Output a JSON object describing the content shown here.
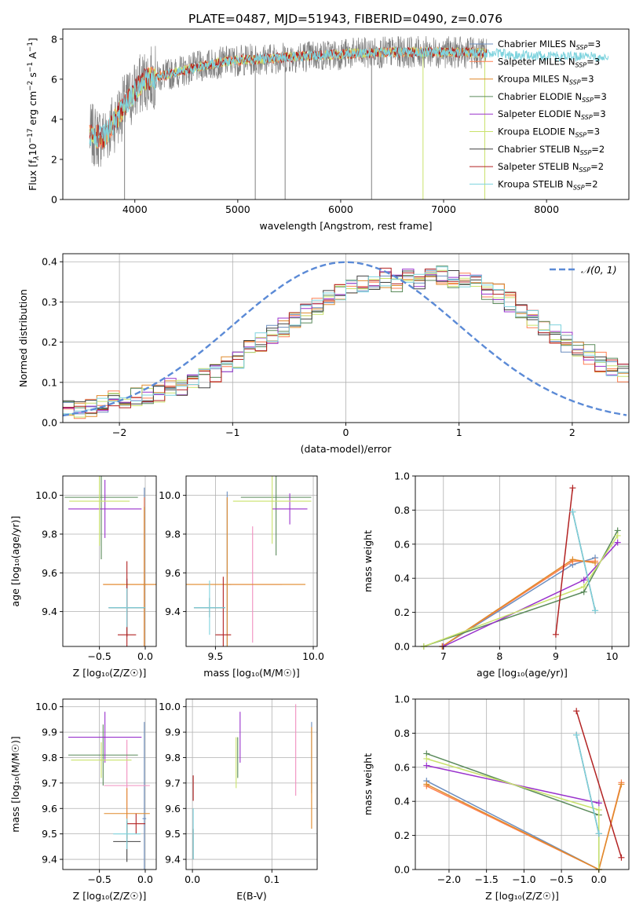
{
  "figure": {
    "title": "PLATE=0487, MJD=51943, FIBERID=0490, z=0.076"
  },
  "colors": {
    "Chabrier MILES": "#6c8ebf",
    "Salpeter MILES": "#ff7f50",
    "Kroupa MILES": "#e08a2b",
    "Chabrier ELODIE": "#5a8a5a",
    "Salpeter ELODIE": "#9932cc",
    "Kroupa ELODIE": "#c9e26b",
    "Chabrier STELIB": "#404040",
    "Salpeter STELIB": "#b22222",
    "Kroupa STELIB": "#7ed3de",
    "Salpeter MILES pink": "#f08fbf",
    "grey": "#808080",
    "gauss": "#5b8ad6"
  },
  "chart_data": [
    {
      "id": "spectrum",
      "type": "line",
      "xlabel": "wavelength [Angstrom, rest frame]",
      "ylabel": "Flux [f",
      "ylabel_parts": [
        "Flux [f",
        "λ",
        "10",
        "−17",
        " erg cm",
        "−2",
        " s",
        "−1",
        " A",
        "−1",
        "]"
      ],
      "xlim": [
        3300,
        8800
      ],
      "ylim": [
        0,
        8.5
      ],
      "xticks": [
        4000,
        5000,
        6000,
        7000,
        8000
      ],
      "yticks": [
        0,
        2,
        4,
        6,
        8
      ],
      "legend_position": "right",
      "legend": [
        {
          "name": "Chabrier MILES",
          "sub": "SSP",
          "n": "=3"
        },
        {
          "name": "Salpeter MILES",
          "sub": "SSP",
          "n": "=3"
        },
        {
          "name": "Kroupa MILES",
          "sub": "SSP",
          "n": "=3"
        },
        {
          "name": "Chabrier ELODIE",
          "sub": "SSP",
          "n": "=3"
        },
        {
          "name": "Salpeter ELODIE",
          "sub": "SSP",
          "n": "=3"
        },
        {
          "name": "Kroupa ELODIE",
          "sub": "SSP",
          "n": "=3"
        },
        {
          "name": "Chabrier STELIB",
          "sub": "SSP",
          "n": "=2"
        },
        {
          "name": "Salpeter STELIB",
          "sub": "SSP",
          "n": "=2"
        },
        {
          "name": "Kroupa STELIB",
          "sub": "SSP",
          "n": "=2"
        }
      ],
      "continuum": [
        [
          3560,
          3.2
        ],
        [
          3700,
          3.1
        ],
        [
          3900,
          4.7
        ],
        [
          4000,
          5.4
        ],
        [
          4100,
          6.0
        ],
        [
          4300,
          6.2
        ],
        [
          4600,
          6.6
        ],
        [
          4900,
          6.9
        ],
        [
          5200,
          7.0
        ],
        [
          5500,
          7.1
        ],
        [
          6000,
          7.25
        ],
        [
          6500,
          7.35
        ],
        [
          7000,
          7.35
        ],
        [
          7400,
          7.3
        ],
        [
          8000,
          7.15
        ],
        [
          8600,
          7.1
        ]
      ],
      "observed_range": [
        3560,
        7420
      ],
      "dips": [
        [
          3900,
          0
        ],
        [
          5170,
          0
        ],
        [
          5460,
          0
        ],
        [
          6300,
          0
        ],
        [
          6800,
          0
        ],
        [
          7400,
          0
        ]
      ]
    },
    {
      "id": "residuals",
      "type": "line",
      "xlabel": "(data-model)/error",
      "ylabel": "Normed distribution",
      "xlim": [
        -2.5,
        2.5
      ],
      "ylim": [
        0,
        0.42
      ],
      "xticks": [
        -2,
        -1,
        0,
        1,
        2
      ],
      "yticks": [
        0.0,
        0.1,
        0.2,
        0.3,
        0.4
      ],
      "legend_position": "top-right",
      "legend": [
        {
          "name": "𝒩(0, 1)"
        }
      ],
      "bin_edges_start": -2.5,
      "bin_width": 0.1,
      "base_hist": [
        0.03,
        0.035,
        0.04,
        0.05,
        0.055,
        0.06,
        0.065,
        0.07,
        0.075,
        0.085,
        0.09,
        0.1,
        0.11,
        0.125,
        0.14,
        0.16,
        0.18,
        0.2,
        0.22,
        0.235,
        0.25,
        0.27,
        0.29,
        0.31,
        0.33,
        0.34,
        0.35,
        0.35,
        0.36,
        0.35,
        0.36,
        0.355,
        0.36,
        0.365,
        0.36,
        0.35,
        0.345,
        0.33,
        0.32,
        0.3,
        0.285,
        0.26,
        0.24,
        0.22,
        0.2,
        0.185,
        0.17,
        0.15,
        0.135,
        0.125,
        0.11,
        0.1,
        0.09,
        0.08,
        0.075,
        0.07,
        0.06,
        0.055,
        0.05,
        0.045
      ]
    },
    {
      "id": "z-age",
      "type": "scatter",
      "xlabel": "Z [log₁₀(Z/Z☉)]",
      "ylabel": "age  [log₁₀(age/yr)]",
      "xlim": [
        -0.9,
        0.12
      ],
      "ylim": [
        9.22,
        10.1
      ],
      "xticks": [
        -0.5,
        0.0
      ],
      "yticks": [
        9.4,
        9.6,
        9.8,
        10.0
      ],
      "points": [
        {
          "model": "Chabrier MILES",
          "x": -0.01,
          "y": 9.54,
          "xerr": 0.02,
          "yerr": 0.5
        },
        {
          "model": "Salpeter MILES",
          "x": -0.01,
          "y": 9.54,
          "xerr": 0.45,
          "yerr": 0.45
        },
        {
          "model": "Kroupa MILES",
          "x": -0.01,
          "y": 9.54,
          "xerr": 0.45,
          "yerr": 0.4
        },
        {
          "model": "Chabrier ELODIE",
          "x": -0.48,
          "y": 9.99,
          "xerr": 0.4,
          "yerr": 0.32
        },
        {
          "model": "Salpeter ELODIE",
          "x": -0.44,
          "y": 9.93,
          "xerr": 0.4,
          "yerr": 0.15
        },
        {
          "model": "Kroupa ELODIE",
          "x": -0.5,
          "y": 9.97,
          "xerr": 0.33,
          "yerr": 0.23
        },
        {
          "model": "Chabrier STELIB",
          "x": -0.2,
          "y": 9.42,
          "xerr": 0.2,
          "yerr": 0.15
        },
        {
          "model": "Salpeter STELIB",
          "x": -0.2,
          "y": 9.28,
          "xerr": 0.1,
          "yerr": 0.38
        },
        {
          "model": "Kroupa STELIB",
          "x": -0.2,
          "y": 9.42,
          "xerr": 0.2,
          "yerr": 0.1
        }
      ]
    },
    {
      "id": "mass-age",
      "type": "scatter",
      "xlabel": "mass [log₁₀(M/M☉)]",
      "ylabel": "",
      "xlim": [
        9.35,
        10.02
      ],
      "ylim": [
        9.22,
        10.1
      ],
      "xticks": [
        9.5,
        10.0
      ],
      "yticks": [
        9.4,
        9.6,
        9.8,
        10.0
      ],
      "points": [
        {
          "model": "Chabrier MILES",
          "x": 9.56,
          "y": 9.54,
          "xerr": 0.02,
          "yerr": 0.48
        },
        {
          "model": "Salpeter MILES",
          "x": 9.69,
          "y": 9.54,
          "xerr": 0.15,
          "yerr": 0.3
        },
        {
          "model": "Kroupa MILES",
          "x": 9.56,
          "y": 9.54,
          "xerr": 0.4,
          "yerr": 0.45
        },
        {
          "model": "Chabrier ELODIE",
          "x": 9.81,
          "y": 9.99,
          "xerr": 0.18,
          "yerr": 0.3
        },
        {
          "model": "Salpeter ELODIE",
          "x": 9.88,
          "y": 9.93,
          "xerr": 0.09,
          "yerr": 0.08
        },
        {
          "model": "Kroupa ELODIE",
          "x": 9.79,
          "y": 9.97,
          "xerr": 0.2,
          "yerr": 0.22
        },
        {
          "model": "Chabrier STELIB",
          "x": 9.47,
          "y": 9.42,
          "xerr": 0.08,
          "yerr": 0.05
        },
        {
          "model": "Salpeter STELIB",
          "x": 9.54,
          "y": 9.28,
          "xerr": 0.04,
          "yerr": 0.3
        },
        {
          "model": "Kroupa STELIB",
          "x": 9.47,
          "y": 9.42,
          "xerr": 0.08,
          "yerr": 0.14
        }
      ]
    },
    {
      "id": "age-weight",
      "type": "line",
      "xlabel": "age  [log₁₀(age/yr)]",
      "ylabel": "mass weight",
      "xlim": [
        6.5,
        10.3
      ],
      "ylim": [
        0,
        1.0
      ],
      "xticks": [
        7,
        8,
        9,
        10
      ],
      "yticks": [
        0.0,
        0.2,
        0.4,
        0.6,
        0.8,
        1.0
      ],
      "series": [
        {
          "model": "Chabrier MILES",
          "x": [
            6.98,
            9.3,
            9.7
          ],
          "y": [
            0.0,
            0.48,
            0.52
          ]
        },
        {
          "model": "Salpeter MILES",
          "x": [
            6.98,
            9.3,
            9.7
          ],
          "y": [
            0.0,
            0.5,
            0.5
          ]
        },
        {
          "model": "Kroupa MILES",
          "x": [
            6.98,
            9.3,
            9.7
          ],
          "y": [
            0.0,
            0.51,
            0.49
          ]
        },
        {
          "model": "Chabrier ELODIE",
          "x": [
            6.65,
            9.5,
            10.1
          ],
          "y": [
            0.0,
            0.32,
            0.68
          ]
        },
        {
          "model": "Salpeter ELODIE",
          "x": [
            7.0,
            9.5,
            10.1
          ],
          "y": [
            0.0,
            0.39,
            0.61
          ]
        },
        {
          "model": "Kroupa ELODIE",
          "x": [
            6.65,
            9.5,
            10.1
          ],
          "y": [
            0.0,
            0.35,
            0.65
          ]
        },
        {
          "model": "Chabrier STELIB",
          "x": [
            9.3,
            9.7
          ],
          "y": [
            0.79,
            0.21
          ]
        },
        {
          "model": "Salpeter STELIB",
          "x": [
            9.0,
            9.3
          ],
          "y": [
            0.07,
            0.93
          ]
        },
        {
          "model": "Kroupa STELIB",
          "x": [
            9.3,
            9.7
          ],
          "y": [
            0.79,
            0.21
          ]
        }
      ]
    },
    {
      "id": "z-mass",
      "type": "scatter",
      "xlabel": "Z [log₁₀(Z/Z☉)]",
      "ylabel": "mass [log₁₀(M/M☉)]",
      "xlim": [
        -0.9,
        0.12
      ],
      "ylim": [
        9.36,
        10.03
      ],
      "xticks": [
        -0.5,
        0.0
      ],
      "yticks": [
        9.4,
        9.5,
        9.6,
        9.7,
        9.8,
        9.9,
        10.0
      ],
      "points": [
        {
          "model": "Chabrier MILES",
          "x": -0.01,
          "y": 9.56,
          "xerr": 0.02,
          "yerr": 0.38
        },
        {
          "model": "Salpeter MILES",
          "x": -0.2,
          "y": 9.69,
          "xerr": 0.25,
          "yerr": 0.18
        },
        {
          "model": "Kroupa MILES",
          "x": -0.2,
          "y": 9.58,
          "xerr": 0.25,
          "yerr": 0.1
        },
        {
          "model": "Chabrier ELODIE",
          "x": -0.46,
          "y": 9.81,
          "xerr": 0.38,
          "yerr": 0.12
        },
        {
          "model": "Salpeter ELODIE",
          "x": -0.44,
          "y": 9.88,
          "xerr": 0.4,
          "yerr": 0.1
        },
        {
          "model": "Kroupa ELODIE",
          "x": -0.48,
          "y": 9.79,
          "xerr": 0.33,
          "yerr": 0.07
        },
        {
          "model": "Chabrier STELIB",
          "x": -0.2,
          "y": 9.47,
          "xerr": 0.15,
          "yerr": 0.08
        },
        {
          "model": "Salpeter STELIB",
          "x": -0.1,
          "y": 9.54,
          "xerr": 0.1,
          "yerr": 0.04
        },
        {
          "model": "Kroupa STELIB",
          "x": -0.2,
          "y": 9.5,
          "xerr": 0.15,
          "yerr": 0.06
        }
      ]
    },
    {
      "id": "ebv-mass",
      "type": "scatter",
      "xlabel": "E(B-V)",
      "ylabel": "",
      "xlim": [
        -0.008,
        0.157
      ],
      "ylim": [
        9.36,
        10.03
      ],
      "xticks": [
        0.0,
        0.1
      ],
      "yticks": [
        9.4,
        9.5,
        9.6,
        9.7,
        9.8,
        9.9,
        10.0
      ],
      "points": [
        {
          "model": "Chabrier MILES",
          "x": 0.15,
          "y": 9.8,
          "yerr": 0.14
        },
        {
          "model": "Salpeter MILES",
          "x": 0.13,
          "y": 9.83,
          "yerr": 0.18
        },
        {
          "model": "Kroupa MILES",
          "x": 0.15,
          "y": 9.72,
          "yerr": 0.2
        },
        {
          "model": "Chabrier ELODIE",
          "x": 0.057,
          "y": 9.8,
          "yerr": 0.08
        },
        {
          "model": "Salpeter ELODIE",
          "x": 0.06,
          "y": 9.88,
          "yerr": 0.1
        },
        {
          "model": "Kroupa ELODIE",
          "x": 0.055,
          "y": 9.78,
          "yerr": 0.1
        },
        {
          "model": "Chabrier STELIB",
          "x": 0.001,
          "y": 9.46,
          "yerr": 0.06
        },
        {
          "model": "Salpeter STELIB",
          "x": 0.001,
          "y": 9.68,
          "yerr": 0.05
        },
        {
          "model": "Kroupa STELIB",
          "x": 0.001,
          "y": 9.5,
          "yerr": 0.1
        }
      ]
    },
    {
      "id": "z-weight",
      "type": "line",
      "xlabel": "Z [log₁₀(Z/Z☉)]",
      "ylabel": "mass weight",
      "xlim": [
        -2.45,
        0.4
      ],
      "ylim": [
        0,
        1.0
      ],
      "xticks": [
        -2.0,
        -1.5,
        -1.0,
        -0.5,
        0.0
      ],
      "yticks": [
        0.0,
        0.2,
        0.4,
        0.6,
        0.8,
        1.0
      ],
      "series": [
        {
          "model": "Chabrier MILES",
          "x": [
            -2.3,
            0.0,
            0.0
          ],
          "y": [
            0.52,
            0.0,
            0.21
          ]
        },
        {
          "model": "Salpeter MILES",
          "x": [
            -2.3,
            0.0,
            0.3
          ],
          "y": [
            0.49,
            0.0,
            0.51
          ]
        },
        {
          "model": "Kroupa MILES",
          "x": [
            -2.3,
            0.0,
            0.3
          ],
          "y": [
            0.5,
            0.0,
            0.5
          ]
        },
        {
          "model": "Chabrier ELODIE",
          "x": [
            -2.3,
            0.0
          ],
          "y": [
            0.68,
            0.32
          ]
        },
        {
          "model": "Salpeter ELODIE",
          "x": [
            -2.3,
            0.0
          ],
          "y": [
            0.61,
            0.39
          ]
        },
        {
          "model": "Kroupa ELODIE",
          "x": [
            -2.3,
            0.0,
            0.0
          ],
          "y": [
            0.65,
            0.35,
            0.0
          ]
        },
        {
          "model": "Chabrier STELIB",
          "x": [
            -0.3,
            0.0
          ],
          "y": [
            0.79,
            0.21
          ]
        },
        {
          "model": "Salpeter STELIB",
          "x": [
            -0.3,
            0.3
          ],
          "y": [
            0.93,
            0.07
          ]
        },
        {
          "model": "Kroupa STELIB",
          "x": [
            -0.3,
            0.0
          ],
          "y": [
            0.79,
            0.21
          ]
        }
      ]
    }
  ]
}
